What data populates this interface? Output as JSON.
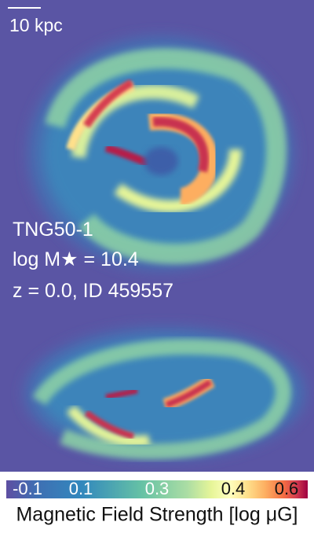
{
  "scale_bar": {
    "label": "10 kpc"
  },
  "info": {
    "lines": [
      "TNG50-1",
      "log M★ = 10.4",
      "z = 0.0, ID 459557"
    ]
  },
  "colorbar": {
    "ticks": [
      "-0.1",
      "0.1",
      "0.3",
      "0.4",
      "0.6"
    ],
    "label": "Magnetic Field Strength [log μG]"
  }
}
